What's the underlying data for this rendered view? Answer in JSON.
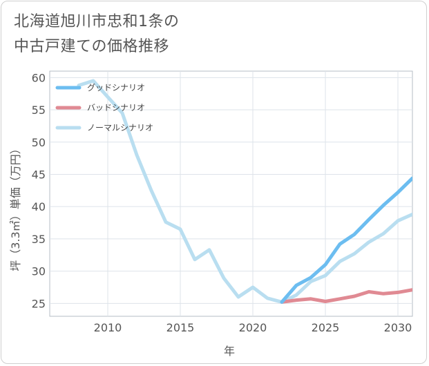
{
  "title_lines": [
    "北海道旭川市忠和1条の",
    "中古戸建ての価格推移"
  ],
  "chart_data": {
    "type": "line",
    "xlabel": "年",
    "ylabel": "坪（3.3㎡）単価（万円）",
    "xlim": [
      2006,
      2031
    ],
    "ylim": [
      23,
      61
    ],
    "x_ticks": [
      2010,
      2015,
      2020,
      2025,
      2030
    ],
    "y_ticks": [
      25,
      30,
      35,
      40,
      45,
      50,
      55,
      60
    ],
    "grid": true,
    "legend_position": "top-left",
    "series": [
      {
        "name": "グッドシナリオ",
        "color": "#6cbdf0",
        "x": [
          2022,
          2023,
          2024,
          2025,
          2026,
          2027,
          2028,
          2029,
          2030,
          2031
        ],
        "y": [
          25.2,
          27.8,
          29.0,
          31.0,
          34.2,
          35.7,
          38.0,
          40.2,
          42.2,
          44.4
        ]
      },
      {
        "name": "バッドシナリオ",
        "color": "#e08a93",
        "x": [
          2022,
          2023,
          2024,
          2025,
          2026,
          2027,
          2028,
          2029,
          2030,
          2031
        ],
        "y": [
          25.2,
          25.5,
          25.7,
          25.3,
          25.7,
          26.1,
          26.8,
          26.5,
          26.7,
          27.1
        ]
      },
      {
        "name": "ノーマルシナリオ",
        "color": "#b9def0",
        "x": [
          2008,
          2009,
          2010,
          2011,
          2012,
          2013,
          2014,
          2015,
          2016,
          2017,
          2018,
          2019,
          2020,
          2021,
          2022,
          2023,
          2024,
          2025,
          2026,
          2027,
          2028,
          2029,
          2030,
          2031
        ],
        "y": [
          58.8,
          59.5,
          57.0,
          54.5,
          48.0,
          42.5,
          37.6,
          36.5,
          31.8,
          33.3,
          28.9,
          26.0,
          27.5,
          25.8,
          25.2,
          26.3,
          28.4,
          29.3,
          31.5,
          32.7,
          34.5,
          35.8,
          37.8,
          38.8
        ]
      }
    ]
  }
}
